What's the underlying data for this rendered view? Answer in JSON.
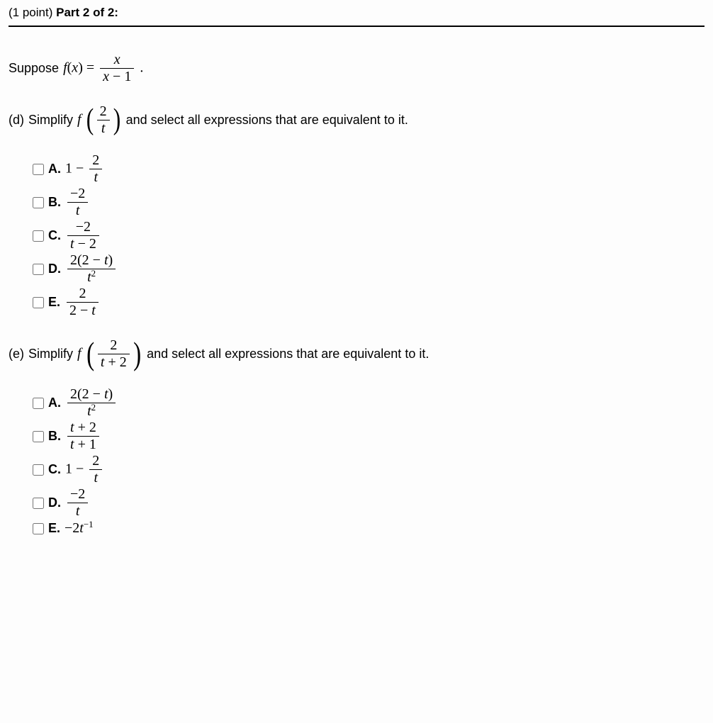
{
  "header": {
    "points": "(1 point)",
    "part": "Part 2 of 2:"
  },
  "intro": {
    "text_before": "Suppose",
    "func": "f",
    "arg_open": "(",
    "arg_var": "x",
    "arg_close": ")",
    "equals": " = ",
    "frac_num": "x",
    "frac_den_left": "x",
    "frac_den_op": " − ",
    "frac_den_right": "1",
    "period": "."
  },
  "qd": {
    "label": "(d)",
    "text_before": "Simplify",
    "func": "f",
    "inner_num": "2",
    "inner_den": "t",
    "text_after": "and select all expressions that are equivalent to it.",
    "options": {
      "A": {
        "label": "A."
      },
      "B": {
        "label": "B."
      },
      "C": {
        "label": "C."
      },
      "D": {
        "label": "D."
      },
      "E": {
        "label": "E."
      }
    }
  },
  "qe": {
    "label": "(e)",
    "text_before": "Simplify",
    "func": "f",
    "inner_num": "2",
    "inner_den_left": "t",
    "inner_den_op": " + ",
    "inner_den_right": "2",
    "text_after": "and select all expressions that are equivalent to it.",
    "options": {
      "A": {
        "label": "A."
      },
      "B": {
        "label": "B."
      },
      "C": {
        "label": "C."
      },
      "D": {
        "label": "D."
      },
      "E": {
        "label": "E."
      }
    }
  },
  "math": {
    "one": "1",
    "two": "2",
    "neg2": "−2",
    "minus": " − ",
    "plus": " + ",
    "t": "t",
    "t2_base": "t",
    "t2_exp": "2",
    "tneg1_exp": "−1",
    "lpar": "(",
    "rpar": ")"
  }
}
